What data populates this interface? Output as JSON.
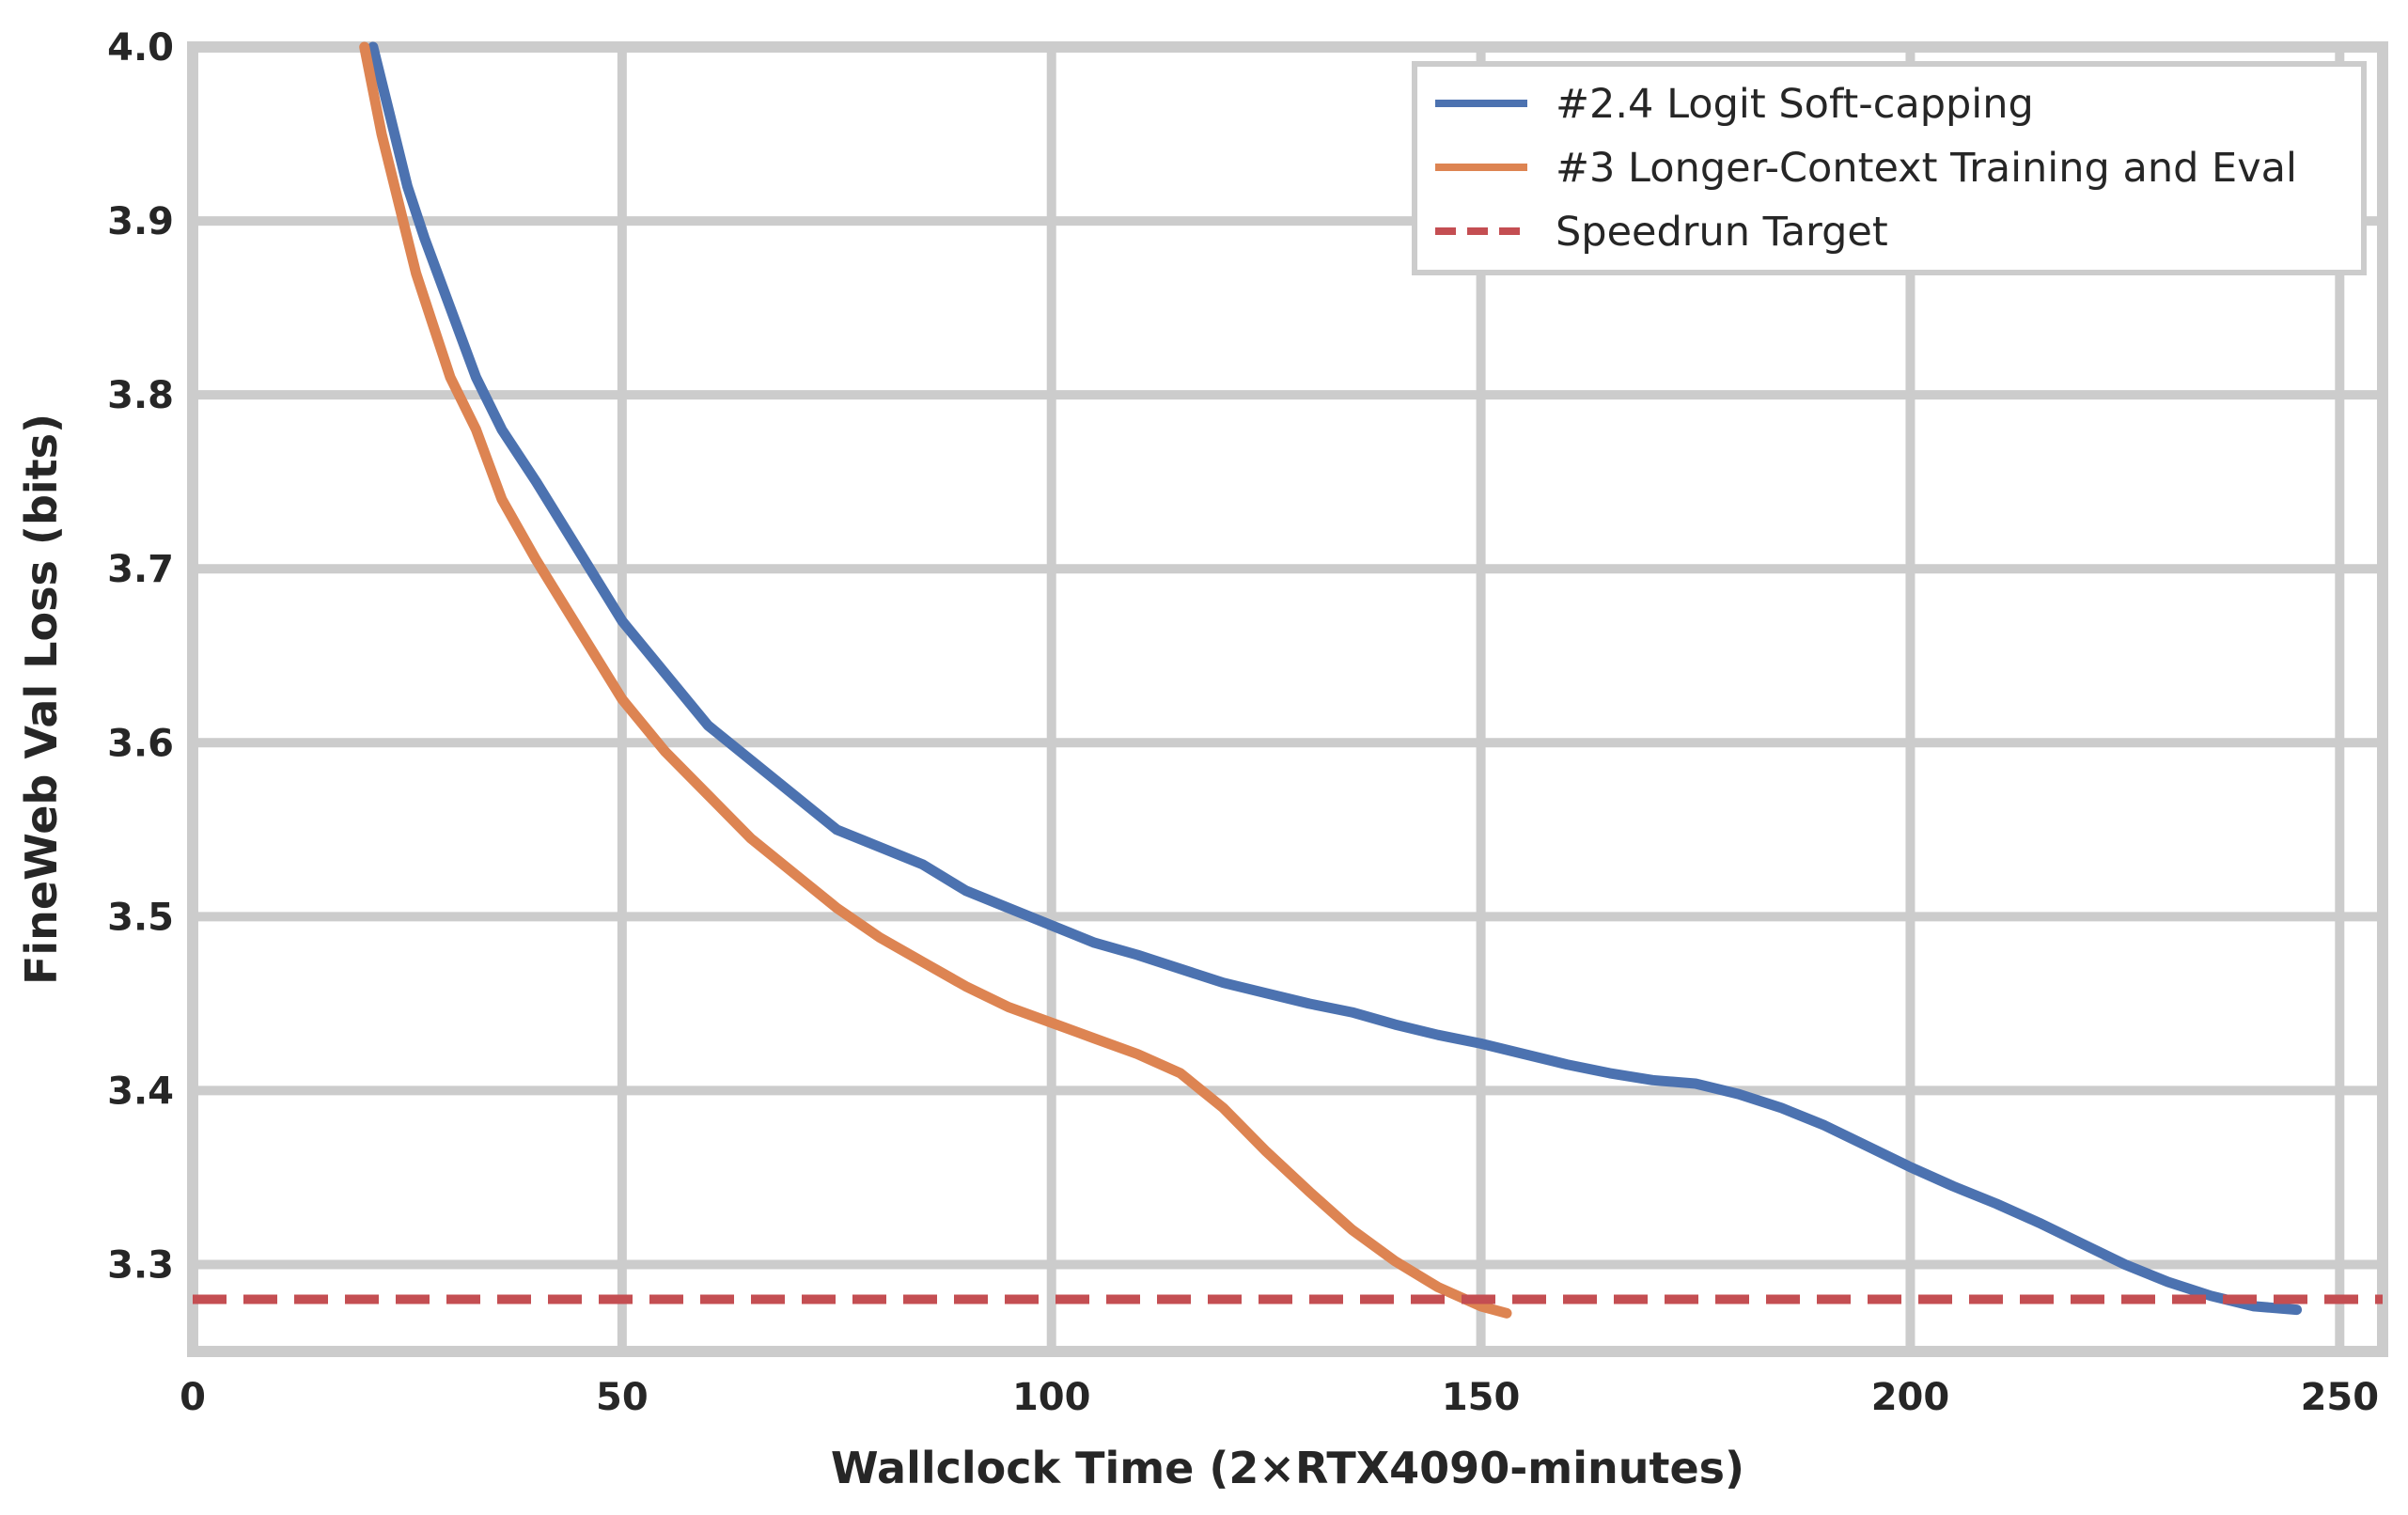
{
  "chart_data": {
    "type": "line",
    "title": "",
    "xlabel": "Wallclock Time (2×RTX4090-minutes)",
    "ylabel": "FineWeb Val Loss (bits)",
    "xlim": [
      0,
      255
    ],
    "ylim": [
      3.25,
      4.0
    ],
    "xticks": [
      0,
      50,
      100,
      150,
      200,
      250
    ],
    "xtick_labels": [
      "0",
      "50",
      "100",
      "150",
      "200",
      "250"
    ],
    "yticks": [
      3.3,
      3.4,
      3.5,
      3.6,
      3.7,
      3.8,
      3.9,
      4.0
    ],
    "ytick_labels": [
      "3.3",
      "3.4",
      "3.5",
      "3.6",
      "3.7",
      "3.8",
      "3.9",
      "4.0"
    ],
    "grid": true,
    "legend_position": "top-right",
    "series": [
      {
        "name": "#2.4 Logit Soft-capping",
        "color": "#4c72b0",
        "style": "solid",
        "x": [
          21,
          23,
          25,
          27,
          30,
          33,
          36,
          40,
          45,
          50,
          55,
          60,
          65,
          70,
          75,
          80,
          85,
          90,
          95,
          100,
          105,
          110,
          115,
          120,
          125,
          130,
          135,
          140,
          145,
          150,
          155,
          160,
          165,
          170,
          175,
          180,
          185,
          190,
          195,
          200,
          205,
          210,
          215,
          220,
          225,
          230,
          235,
          240,
          245
        ],
        "y": [
          4.0,
          3.96,
          3.92,
          3.89,
          3.85,
          3.81,
          3.78,
          3.75,
          3.71,
          3.67,
          3.64,
          3.61,
          3.59,
          3.57,
          3.55,
          3.54,
          3.53,
          3.515,
          3.505,
          3.495,
          3.485,
          3.478,
          3.47,
          3.462,
          3.456,
          3.45,
          3.445,
          3.438,
          3.432,
          3.427,
          3.421,
          3.415,
          3.41,
          3.406,
          3.404,
          3.398,
          3.39,
          3.38,
          3.368,
          3.356,
          3.345,
          3.335,
          3.324,
          3.312,
          3.3,
          3.29,
          3.282,
          3.276,
          3.274
        ]
      },
      {
        "name": "#3 Longer-Context Training and Eval",
        "color": "#dd8452",
        "style": "solid",
        "x": [
          20,
          22,
          24,
          26,
          28,
          30,
          33,
          36,
          40,
          45,
          50,
          55,
          60,
          65,
          70,
          75,
          80,
          85,
          90,
          95,
          100,
          105,
          110,
          115,
          120,
          125,
          130,
          135,
          140,
          145,
          150,
          153
        ],
        "y": [
          4.0,
          3.95,
          3.91,
          3.87,
          3.84,
          3.81,
          3.78,
          3.74,
          3.705,
          3.665,
          3.625,
          3.595,
          3.57,
          3.545,
          3.525,
          3.505,
          3.488,
          3.474,
          3.46,
          3.448,
          3.439,
          3.43,
          3.421,
          3.41,
          3.39,
          3.365,
          3.342,
          3.32,
          3.302,
          3.287,
          3.276,
          3.272
        ]
      },
      {
        "name": "Speedrun Target",
        "color": "#c44e52",
        "style": "dashed",
        "x": [
          0,
          255
        ],
        "y": [
          3.28,
          3.28
        ]
      }
    ]
  }
}
